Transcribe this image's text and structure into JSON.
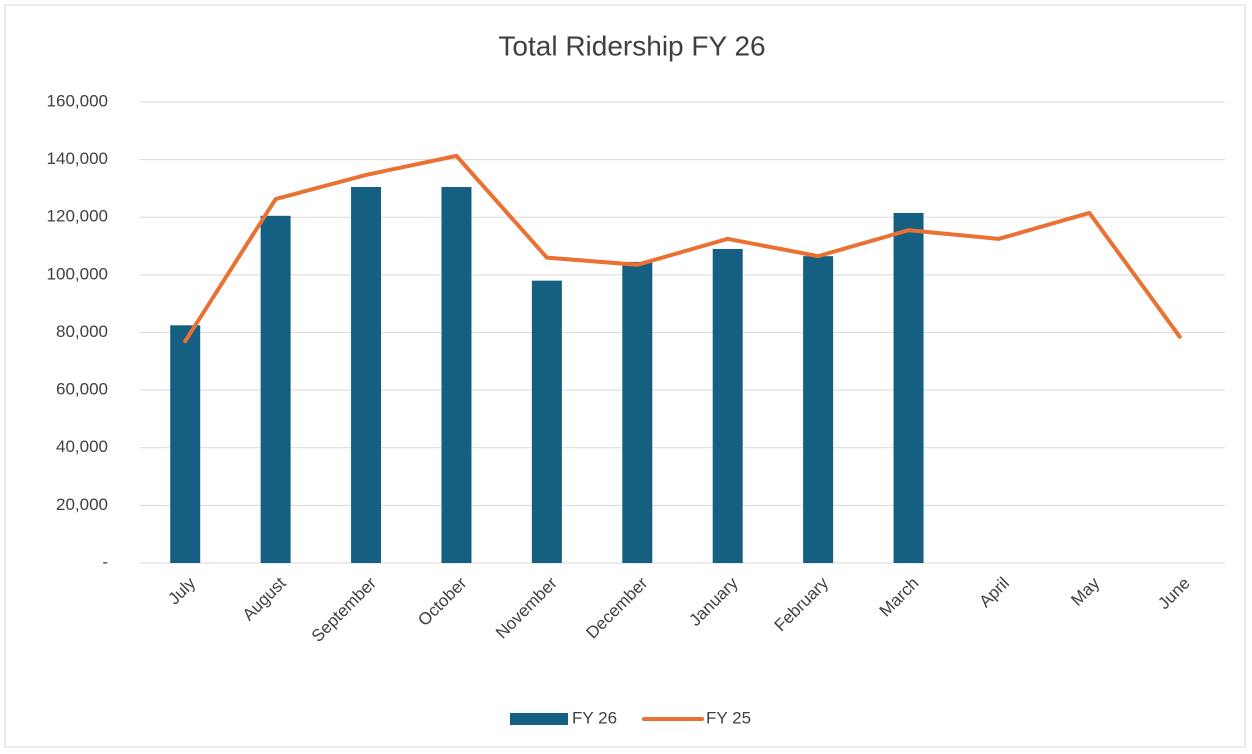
{
  "chart_data": {
    "type": "bar",
    "title": "Total Ridership FY 26",
    "categories": [
      "July",
      "August",
      "September",
      "October",
      "November",
      "December",
      "January",
      "February",
      "March",
      "April",
      "May",
      "June"
    ],
    "series": [
      {
        "name": "FY 26",
        "type": "bar",
        "color": "#156082",
        "values": [
          82500,
          120500,
          130500,
          130500,
          98000,
          104500,
          109000,
          106500,
          121500,
          null,
          null,
          null
        ]
      },
      {
        "name": "FY 25",
        "type": "line",
        "color": "#e97132",
        "values": [
          77000,
          126300,
          134700,
          141300,
          106000,
          103500,
          112500,
          106500,
          115500,
          112500,
          121500,
          78500
        ]
      }
    ],
    "ylim": [
      0,
      160000
    ],
    "yticks": [
      {
        "value": 0,
        "label": "-"
      },
      {
        "value": 20000,
        "label": "20,000"
      },
      {
        "value": 40000,
        "label": "40,000"
      },
      {
        "value": 60000,
        "label": "60,000"
      },
      {
        "value": 80000,
        "label": "80,000"
      },
      {
        "value": 100000,
        "label": "100,000"
      },
      {
        "value": 120000,
        "label": "120,000"
      },
      {
        "value": 140000,
        "label": "140,000"
      },
      {
        "value": 160000,
        "label": "160,000"
      }
    ],
    "grid": true,
    "legend": "bottom"
  }
}
